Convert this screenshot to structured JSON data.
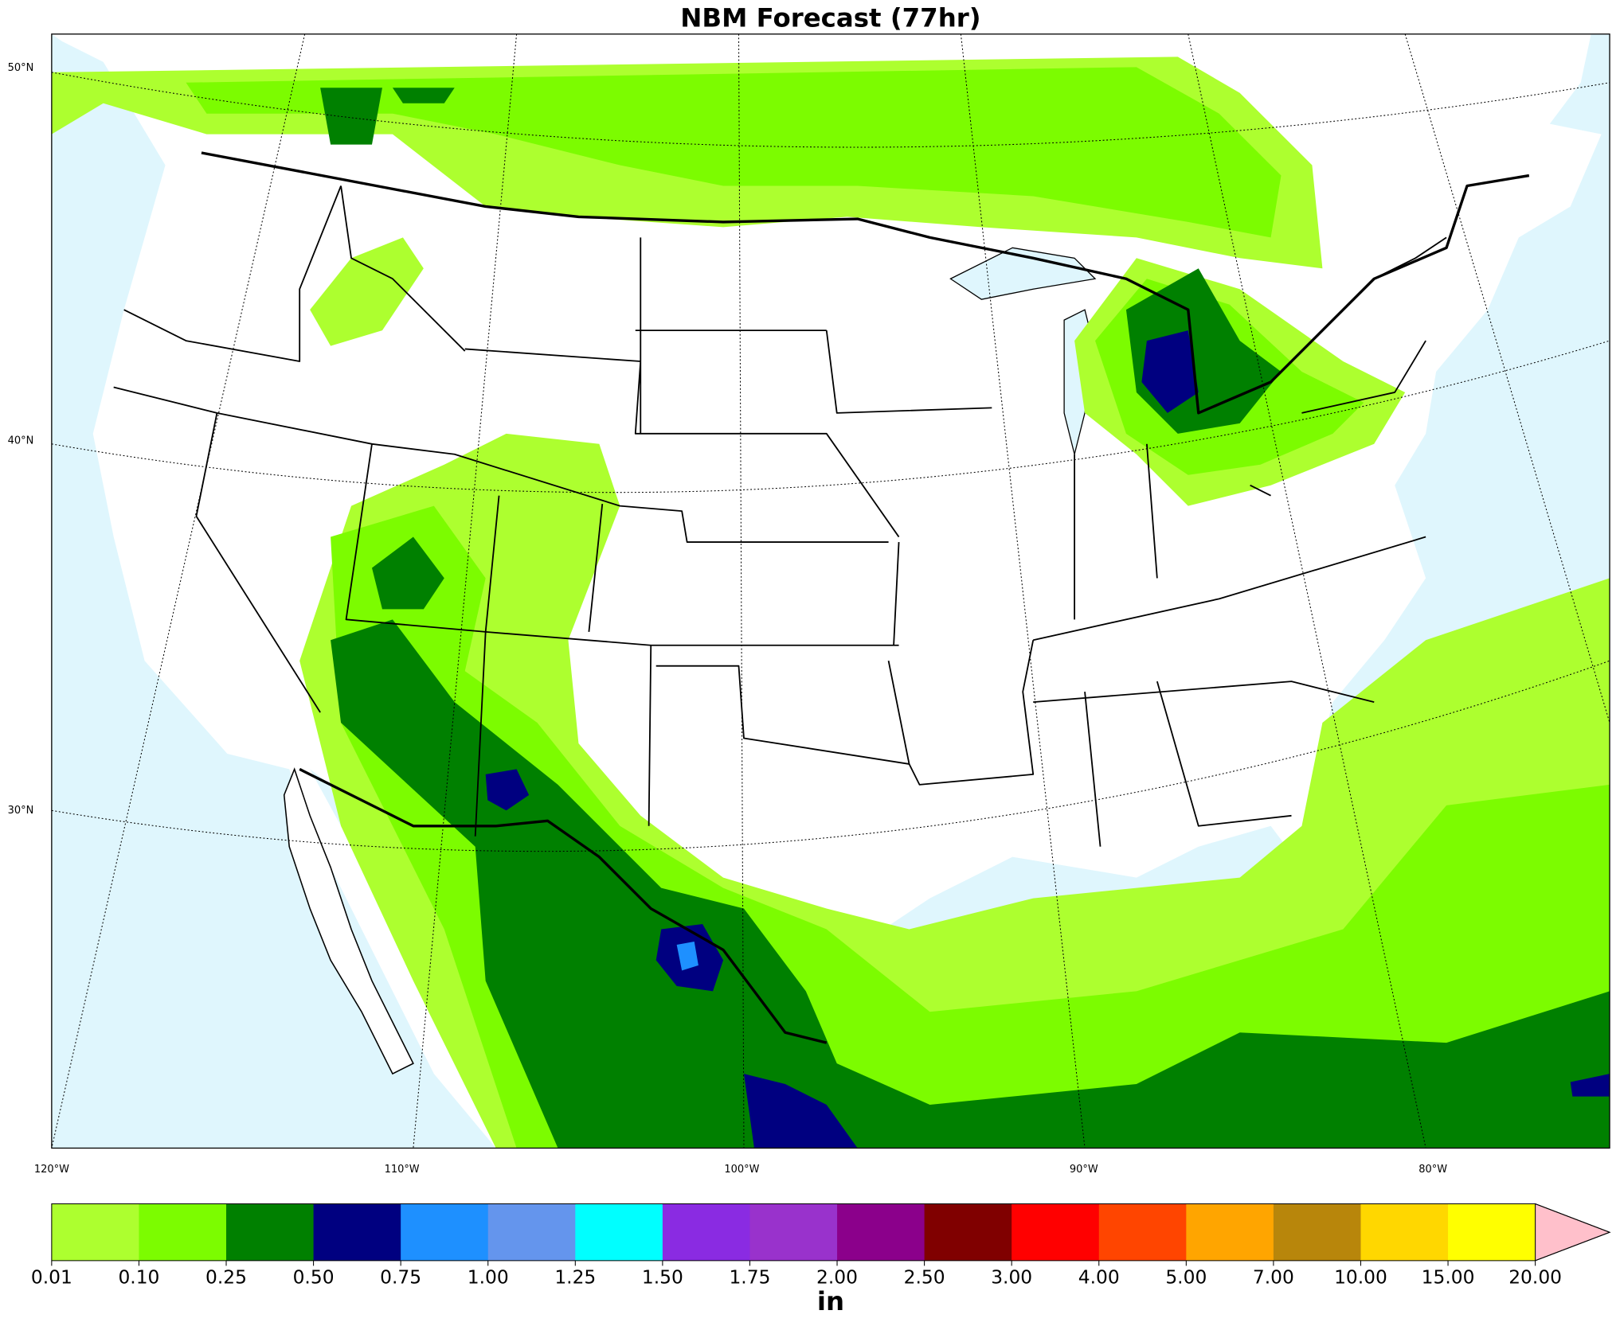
{
  "title": "NBM Forecast (77hr)",
  "lat_labels": [
    "50°N",
    "40°N",
    "30°N"
  ],
  "lon_labels": [
    "120°W",
    "110°W",
    "100°W",
    "90°W",
    "80°W"
  ],
  "colorbar": {
    "label": "in",
    "levels": [
      {
        "value": 0.01,
        "label": "0.01"
      },
      {
        "value": 0.1,
        "label": "0.10"
      },
      {
        "value": 0.25,
        "label": "0.25"
      },
      {
        "value": 0.5,
        "label": "0.50"
      },
      {
        "value": 0.75,
        "label": "0.75"
      },
      {
        "value": 1,
        "label": "1.00"
      },
      {
        "value": 1.25,
        "label": "1.25"
      },
      {
        "value": 1.5,
        "label": "1.50"
      },
      {
        "value": 1.75,
        "label": "1.75"
      },
      {
        "value": 2,
        "label": "2.00"
      },
      {
        "value": 2.5,
        "label": "2.50"
      },
      {
        "value": 3,
        "label": "3.00"
      },
      {
        "value": 4,
        "label": "4.00"
      },
      {
        "value": 5,
        "label": "5.00"
      },
      {
        "value": 7,
        "label": "7.00"
      },
      {
        "value": 10,
        "label": "10.00"
      },
      {
        "value": 15,
        "label": "15.00"
      },
      {
        "value": 20,
        "label": "20.00"
      }
    ],
    "colors": [
      "#adff2f",
      "#7cfc00",
      "#008000",
      "#000080",
      "#1e90ff",
      "#6495ed",
      "#00ffff",
      "#8a2be2",
      "#9932cc",
      "#8b008b",
      "#800000",
      "#ff0000",
      "#ff4500",
      "#ffa500",
      "#b8860b",
      "#ffd700",
      "#ffff00"
    ],
    "extend_color": "#ffc0cb"
  }
}
